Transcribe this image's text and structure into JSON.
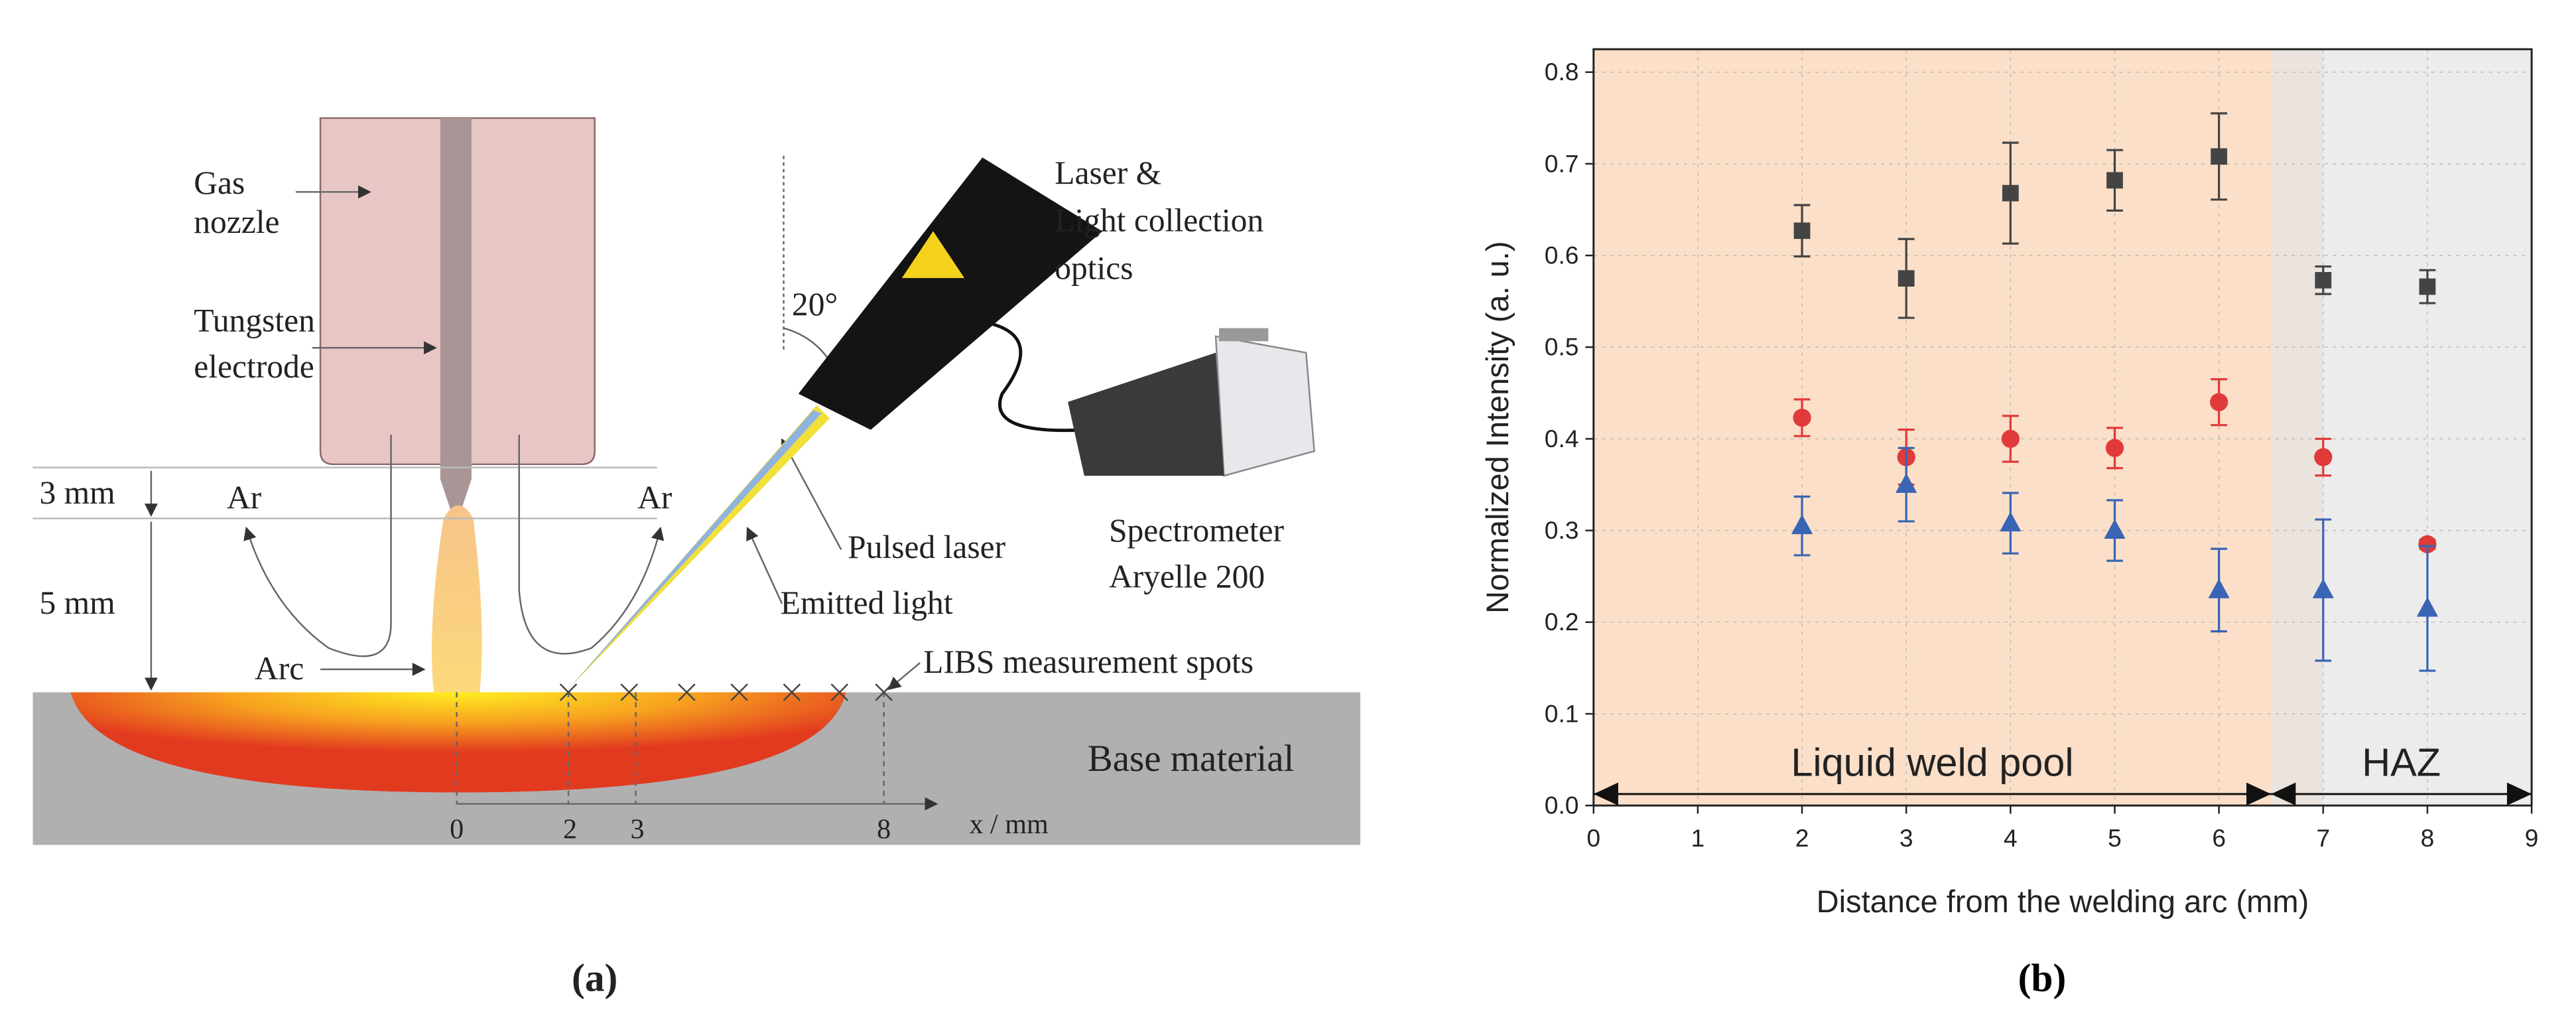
{
  "diagram": {
    "gas_nozzle": [
      "Gas",
      "nozzle"
    ],
    "tungsten_electrode": [
      "Tungsten",
      "electrode"
    ],
    "dim_3": "3 mm",
    "dim_5": "5 mm",
    "ar_left": "Ar",
    "ar_right": "Ar",
    "arc": "Arc",
    "laser": [
      "Laser &",
      "Light collection",
      "optics"
    ],
    "angle": "20°",
    "pulsed_laser": "Pulsed laser",
    "emitted_light": "Emitted light",
    "spectrometer": [
      "Spectrometer",
      "Aryelle 200"
    ],
    "libs_spots": "LIBS measurement spots",
    "base_material": "Base material",
    "axis_ticks": [
      "0",
      "2",
      "3",
      "8"
    ],
    "axis_label": "x / mm",
    "caption": "(a)"
  },
  "chart_data": {
    "type": "scatter",
    "caption": "(b)",
    "x_label": "Distance from the welding arc (mm)",
    "y_label": "Normalized Intensity (a. u.)",
    "xlim": [
      0,
      9
    ],
    "xticks": [
      0,
      1,
      2,
      3,
      4,
      5,
      6,
      7,
      8,
      9
    ],
    "ylim": [
      0,
      0.825
    ],
    "yticks": [
      {
        "value": 0,
        "label": "0.0"
      },
      0.1,
      0.2,
      0.3,
      0.4,
      0.5,
      0.6,
      0.7,
      0.8
    ],
    "grid": true,
    "x": [
      2,
      3,
      4,
      5,
      6,
      7,
      8
    ],
    "series": [
      {
        "marker": "square",
        "color": "#444444",
        "values": [
          0.627,
          0.575,
          0.668,
          0.682,
          0.708,
          0.573,
          0.566
        ],
        "errors": [
          0.028,
          0.043,
          0.055,
          0.033,
          0.047,
          0.015,
          0.018
        ]
      },
      {
        "marker": "circle",
        "color": "#e03a3a",
        "values": [
          0.423,
          0.38,
          0.4,
          0.39,
          0.44,
          0.38,
          0.285
        ],
        "errors": [
          0.02,
          0.03,
          0.025,
          0.022,
          0.025,
          0.02,
          0.005
        ]
      },
      {
        "marker": "triangle",
        "color": "#3a64b4",
        "values": [
          0.305,
          0.35,
          0.308,
          0.3,
          0.235,
          0.235,
          0.215
        ],
        "errors": [
          0.032,
          0.04,
          0.033,
          0.033,
          0.045,
          0.077,
          0.068
        ]
      }
    ],
    "regions": [
      {
        "label": "Liquid weld pool",
        "range": [
          0,
          7
        ],
        "arrow": [
          0,
          6.5
        ],
        "color": "#fbdfc8"
      },
      {
        "label": "HAZ",
        "range": [
          6.5,
          9
        ],
        "arrow": [
          6.5,
          9
        ],
        "color": "#e6e6e6"
      }
    ]
  }
}
